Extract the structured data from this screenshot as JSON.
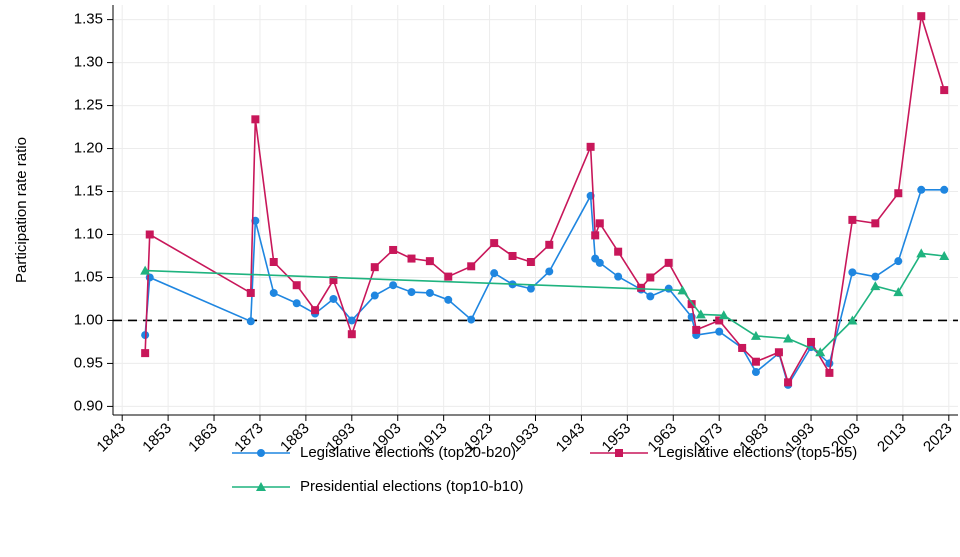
{
  "chart_data": {
    "type": "line",
    "y_label": "Participation rate ratio",
    "xlim": [
      1841,
      2025
    ],
    "ylim": [
      0.89,
      1.367
    ],
    "xticks": [
      1843,
      1853,
      1863,
      1873,
      1883,
      1893,
      1903,
      1913,
      1923,
      1933,
      1943,
      1953,
      1963,
      1973,
      1983,
      1993,
      2003,
      2013,
      2023
    ],
    "yticks": [
      {
        "value": 0.9,
        "label": "0.90"
      },
      0.95,
      {
        "value": 1.0,
        "label": "1.00"
      },
      1.05,
      {
        "value": 1.1,
        "label": "1.10"
      },
      1.15,
      {
        "value": 1.2,
        "label": "1.20"
      },
      1.25,
      {
        "value": 1.3,
        "label": "1.30"
      },
      1.35
    ],
    "grid": true,
    "reference_line": 1,
    "legend_position": "bottom",
    "series": [
      {
        "name": "Legislative elections (top20-b20)",
        "color": "#1f86e0",
        "marker": "circle",
        "x": [
          1848,
          1849,
          1871,
          1872,
          1876,
          1881,
          1885,
          1889,
          1893,
          1898,
          1902,
          1906,
          1910,
          1914,
          1919,
          1924,
          1928,
          1932,
          1936,
          1945,
          1946,
          1947,
          1951,
          1956,
          1958,
          1962,
          1967,
          1968,
          1973,
          1978,
          1981,
          1986,
          1988,
          1993,
          1997,
          2002,
          2007,
          2012,
          2017,
          2022
        ],
        "values": [
          0.983,
          1.05,
          0.999,
          1.116,
          1.032,
          1.02,
          1.008,
          1.025,
          1.0,
          1.029,
          1.041,
          1.033,
          1.032,
          1.024,
          1.001,
          1.055,
          1.042,
          1.037,
          1.057,
          1.145,
          1.072,
          1.067,
          1.051,
          1.036,
          1.028,
          1.037,
          1.004,
          0.983,
          0.987,
          0.968,
          0.94,
          0.962,
          0.925,
          0.969,
          0.95,
          1.056,
          1.051,
          1.069,
          1.152,
          1.152
        ]
      },
      {
        "name": "Legislative elections (top5-b5)",
        "color": "#c8175a",
        "marker": "square",
        "x": [
          1848,
          1849,
          1871,
          1872,
          1876,
          1881,
          1885,
          1889,
          1893,
          1898,
          1902,
          1906,
          1910,
          1914,
          1919,
          1924,
          1928,
          1932,
          1936,
          1945,
          1946,
          1947,
          1951,
          1956,
          1958,
          1962,
          1967,
          1968,
          1973,
          1978,
          1981,
          1986,
          1988,
          1993,
          1997,
          2002,
          2007,
          2012,
          2017,
          2022
        ],
        "values": [
          0.962,
          1.1,
          1.032,
          1.234,
          1.068,
          1.041,
          1.012,
          1.047,
          0.984,
          1.062,
          1.082,
          1.072,
          1.069,
          1.051,
          1.063,
          1.09,
          1.075,
          1.068,
          1.088,
          1.202,
          1.099,
          1.113,
          1.08,
          1.038,
          1.05,
          1.067,
          1.019,
          0.989,
          1.0,
          0.968,
          0.952,
          0.963,
          0.928,
          0.975,
          0.939,
          1.117,
          1.113,
          1.148,
          1.354,
          1.268
        ]
      },
      {
        "name": "Presidential elections (top10-b10)",
        "color": "#1fb37f",
        "marker": "triangle",
        "x": [
          1848,
          1965,
          1969,
          1974,
          1981,
          1988,
          1995,
          2002,
          2007,
          2012,
          2017,
          2022
        ],
        "values": [
          1.058,
          1.035,
          1.007,
          1.006,
          0.982,
          0.979,
          0.963,
          1.0,
          1.04,
          1.033,
          1.078,
          1.075
        ]
      }
    ]
  }
}
